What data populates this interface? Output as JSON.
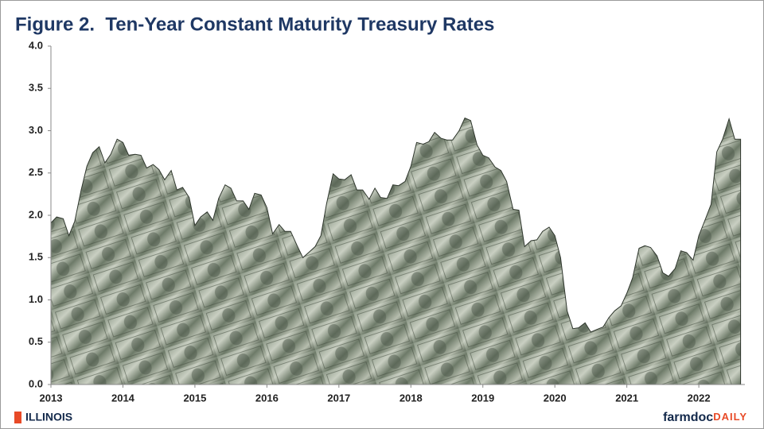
{
  "chart_data": {
    "type": "area",
    "title": "Figure 2.  Ten-Year Constant Maturity Treasury Rates",
    "color": "#6f7a6c",
    "x": [
      2013.0,
      2013.08,
      2013.17,
      2013.25,
      2013.33,
      2013.42,
      2013.5,
      2013.58,
      2013.67,
      2013.75,
      2013.83,
      2013.92,
      2014.0,
      2014.08,
      2014.17,
      2014.25,
      2014.33,
      2014.42,
      2014.5,
      2014.58,
      2014.67,
      2014.75,
      2014.83,
      2014.92,
      2015.0,
      2015.08,
      2015.17,
      2015.25,
      2015.33,
      2015.42,
      2015.5,
      2015.58,
      2015.67,
      2015.75,
      2015.83,
      2015.92,
      2016.0,
      2016.08,
      2016.17,
      2016.25,
      2016.33,
      2016.42,
      2016.5,
      2016.58,
      2016.67,
      2016.75,
      2016.83,
      2016.92,
      2017.0,
      2017.08,
      2017.17,
      2017.25,
      2017.33,
      2017.42,
      2017.5,
      2017.58,
      2017.67,
      2017.75,
      2017.83,
      2017.92,
      2018.0,
      2018.08,
      2018.17,
      2018.25,
      2018.33,
      2018.42,
      2018.5,
      2018.58,
      2018.67,
      2018.75,
      2018.83,
      2018.92,
      2019.0,
      2019.08,
      2019.17,
      2019.25,
      2019.33,
      2019.42,
      2019.5,
      2019.58,
      2019.67,
      2019.75,
      2019.83,
      2019.92,
      2020.0,
      2020.08,
      2020.17,
      2020.25,
      2020.33,
      2020.42,
      2020.5,
      2020.58,
      2020.67,
      2020.75,
      2020.83,
      2020.92,
      2021.0,
      2021.08,
      2021.17,
      2021.25,
      2021.33,
      2021.42,
      2021.5,
      2021.58,
      2021.67,
      2021.75,
      2021.83,
      2021.92,
      2022.0,
      2022.08,
      2022.17,
      2022.25,
      2022.33,
      2022.42,
      2022.5,
      2022.58
    ],
    "values": [
      1.91,
      1.98,
      1.96,
      1.76,
      1.93,
      2.3,
      2.58,
      2.74,
      2.81,
      2.62,
      2.72,
      2.9,
      2.86,
      2.71,
      2.72,
      2.71,
      2.56,
      2.6,
      2.54,
      2.42,
      2.53,
      2.3,
      2.33,
      2.21,
      1.88,
      1.98,
      2.04,
      1.94,
      2.2,
      2.36,
      2.32,
      2.17,
      2.17,
      2.07,
      2.26,
      2.24,
      2.09,
      1.78,
      1.89,
      1.81,
      1.81,
      1.64,
      1.5,
      1.56,
      1.63,
      1.76,
      2.14,
      2.49,
      2.43,
      2.42,
      2.48,
      2.3,
      2.3,
      2.19,
      2.32,
      2.21,
      2.2,
      2.36,
      2.35,
      2.4,
      2.58,
      2.86,
      2.84,
      2.87,
      2.98,
      2.91,
      2.89,
      2.89,
      3.0,
      3.15,
      3.12,
      2.83,
      2.71,
      2.68,
      2.57,
      2.53,
      2.4,
      2.07,
      2.06,
      1.63,
      1.7,
      1.71,
      1.81,
      1.86,
      1.76,
      1.5,
      0.87,
      0.66,
      0.67,
      0.73,
      0.62,
      0.65,
      0.68,
      0.79,
      0.87,
      0.93,
      1.08,
      1.26,
      1.61,
      1.64,
      1.62,
      1.52,
      1.32,
      1.28,
      1.37,
      1.58,
      1.56,
      1.47,
      1.76,
      1.93,
      2.13,
      2.75,
      2.9,
      3.14,
      2.9,
      2.9
    ],
    "xlim": [
      2013,
      2022.64
    ],
    "xticks": [
      2013,
      2014,
      2015,
      2016,
      2017,
      2018,
      2019,
      2020,
      2021,
      2022
    ],
    "ylim": [
      0,
      4
    ],
    "yticks": [
      {
        "value": 4,
        "label": "4.0"
      },
      3.5,
      {
        "value": 3,
        "label": "3.0"
      },
      2.5,
      {
        "value": 2,
        "label": "2.0"
      },
      1.5,
      {
        "value": 1,
        "label": "1.0"
      },
      0.5,
      {
        "value": 0,
        "label": "0.0"
      }
    ],
    "grid": false
  },
  "footer": {
    "logo": "ILLINOIS",
    "brand": "farmdoc",
    "brand_suffix": "DAILY"
  }
}
